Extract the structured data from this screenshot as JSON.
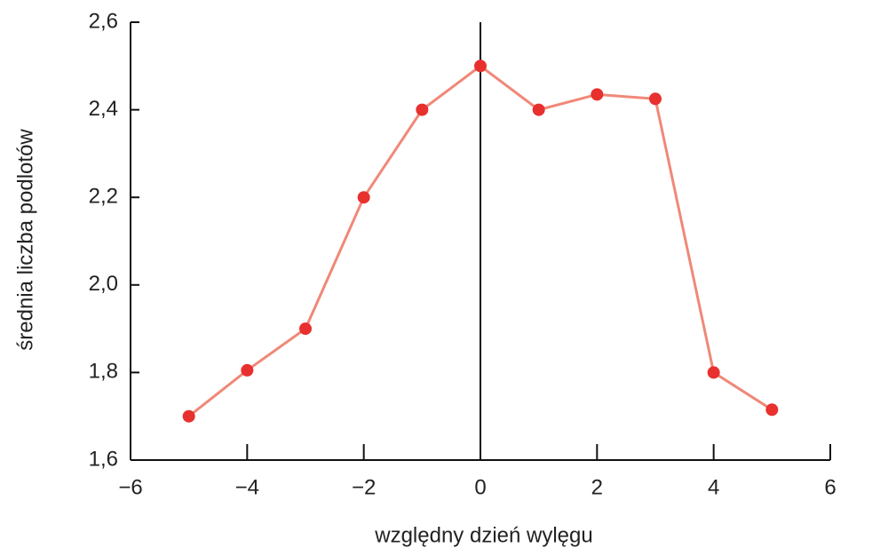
{
  "chart_data": {
    "type": "line",
    "x_label": "względny dzień wylęgu",
    "y_label": "średnia liczba podlotów",
    "x": [
      -5,
      -4,
      -3,
      -2,
      -1,
      0,
      1,
      2,
      3,
      4,
      5
    ],
    "series": [
      {
        "color": "#f08878",
        "marker_color": "#e8302e",
        "values": [
          1.7,
          1.805,
          1.9,
          2.2,
          2.4,
          2.5,
          2.4,
          2.435,
          2.425,
          1.8,
          1.715
        ]
      }
    ],
    "xlim": [
      -6,
      6
    ],
    "xticks": [
      {
        "value": -6,
        "label": "−6"
      },
      {
        "value": -4,
        "label": "−4"
      },
      {
        "value": -2,
        "label": "−2"
      },
      0,
      2,
      4,
      6
    ],
    "ylim": [
      1.6,
      2.6
    ],
    "yticks": [
      {
        "value": 1.6,
        "label": "1,6"
      },
      {
        "value": 1.8,
        "label": "1,8"
      },
      {
        "value": 2.0,
        "label": "2,0"
      },
      {
        "value": 2.2,
        "label": "2,2"
      },
      {
        "value": 2.4,
        "label": "2,4"
      },
      {
        "value": 2.6,
        "label": "2,6"
      }
    ],
    "grid": false
  }
}
